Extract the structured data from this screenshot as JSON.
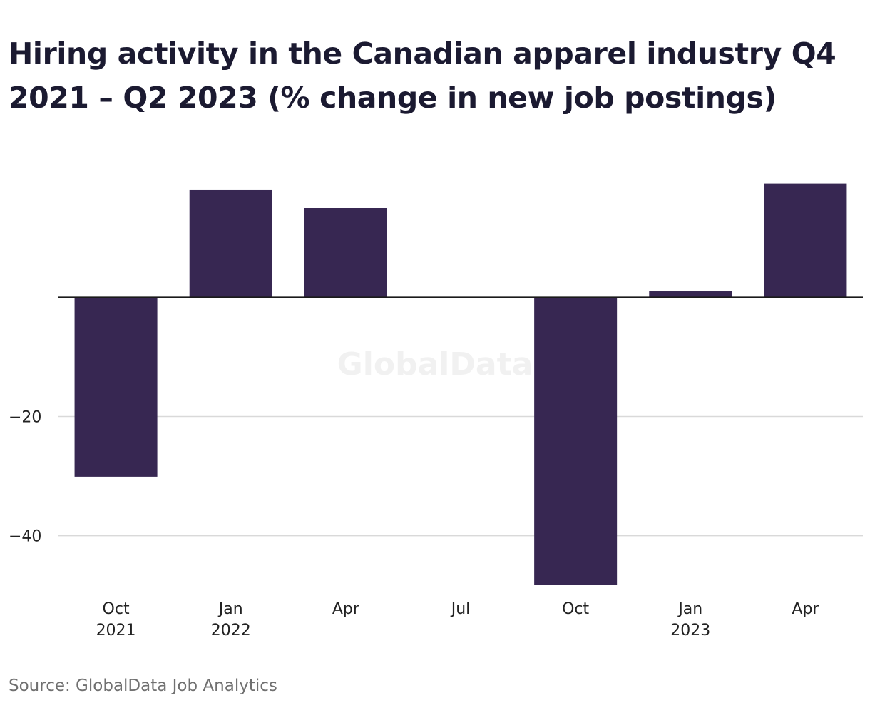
{
  "title": "Hiring activity in the Canadian apparel industry Q4 2021 – Q2 2023 (% change in new job postings)",
  "source": "Source: GlobalData Job Analytics",
  "watermark": "GlobalData",
  "colors": {
    "bar": "#372752",
    "grid": "#d9d9d9",
    "zero_line": "#1a1a1a"
  },
  "chart_data": {
    "type": "bar",
    "categories": [
      "Oct 2021",
      "Jan 2022",
      "Apr",
      "Jul",
      "Oct",
      "Jan 2023",
      "Apr"
    ],
    "x_tick_labels": [
      [
        "Oct",
        "2021"
      ],
      [
        "Jan",
        "2022"
      ],
      [
        "Apr",
        ""
      ],
      [
        "Jul",
        ""
      ],
      [
        "Oct",
        ""
      ],
      [
        "Jan",
        "2023"
      ],
      [
        "Apr",
        ""
      ]
    ],
    "values": [
      -30.1,
      18.0,
      15.0,
      0.0,
      -48.2,
      1.0,
      19.0
    ],
    "ylim": [
      -49.5,
      23.5
    ],
    "y_ticks": [
      -20,
      -40
    ],
    "y_tick_labels": [
      "−20",
      "−40"
    ],
    "grid": true,
    "title": "Hiring activity in the Canadian apparel industry Q4 2021 – Q2 2023 (% change in new job postings)",
    "xlabel": "",
    "ylabel": ""
  }
}
